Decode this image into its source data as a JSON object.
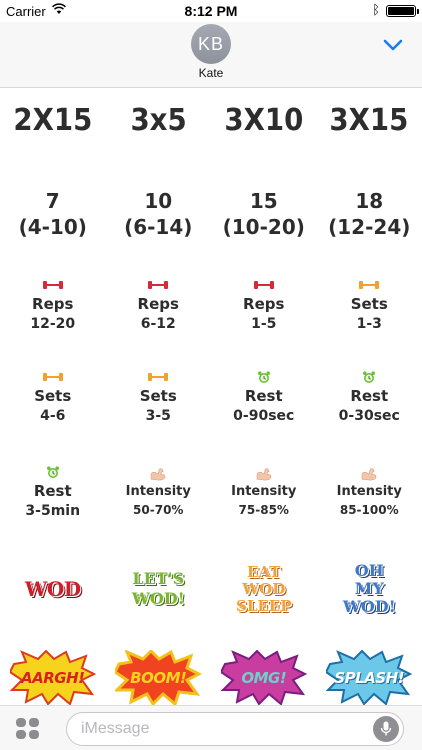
{
  "status": {
    "carrier": "Carrier",
    "time": "8:12 PM",
    "battery_level": 1.0
  },
  "header": {
    "avatar_initials": "KB",
    "contact_name": "Kate"
  },
  "stickers": {
    "schemes": [
      "2X15",
      "3x5",
      "3X10",
      "3X15"
    ],
    "rep_ranges": [
      {
        "value": "7",
        "range": "(4-10)"
      },
      {
        "value": "10",
        "range": "(6-14)"
      },
      {
        "value": "15",
        "range": "(10-20)"
      },
      {
        "value": "18",
        "range": "(12-24)"
      }
    ],
    "row3": [
      {
        "icon": "dumbbell-red-icon",
        "label": "Reps",
        "value": "12-20"
      },
      {
        "icon": "dumbbell-red-icon",
        "label": "Reps",
        "value": "6-12"
      },
      {
        "icon": "dumbbell-red-icon",
        "label": "Reps",
        "value": "1-5"
      },
      {
        "icon": "dumbbell-orange-icon",
        "label": "Sets",
        "value": "1-3"
      }
    ],
    "row4": [
      {
        "icon": "dumbbell-orange-icon",
        "label": "Sets",
        "value": "4-6"
      },
      {
        "icon": "dumbbell-orange-icon",
        "label": "Sets",
        "value": "3-5"
      },
      {
        "icon": "alarm-clock-icon",
        "label": "Rest",
        "value": "0-90sec"
      },
      {
        "icon": "alarm-clock-icon",
        "label": "Rest",
        "value": "0-30sec"
      }
    ],
    "row5": [
      {
        "icon": "alarm-clock-icon",
        "label": "Rest",
        "value": "3-5min"
      },
      {
        "icon": "flexed-biceps-icon",
        "label": "Intensity",
        "value": "50-70%"
      },
      {
        "icon": "flexed-biceps-icon",
        "label": "Intensity",
        "value": "75-85%"
      },
      {
        "icon": "flexed-biceps-icon",
        "label": "Intensity",
        "value": "85-100%"
      }
    ],
    "wordart": {
      "wod": "WOD",
      "lets_wod": [
        "LET'S",
        "WOD!"
      ],
      "eat_wod_sleep": [
        "EAT",
        "WOD",
        "SLEEP"
      ],
      "oh_my_wod": [
        "OH",
        "MY",
        "WOD!"
      ]
    },
    "bursts": [
      {
        "text": "AARGH!",
        "fill": "#f6d31d",
        "stroke": "#e03a1e",
        "text_color": "#d8231c"
      },
      {
        "text": "BOOM!",
        "fill": "#f0431f",
        "stroke": "#f3c21a",
        "text_color": "#ffd21f"
      },
      {
        "text": "OMG!",
        "fill": "#c93ca0",
        "stroke": "#7a1d7e",
        "text_color": "#6fd0c8"
      },
      {
        "text": "SPLASH!",
        "fill": "#6bc8e8",
        "stroke": "#1e6ea8",
        "text_color": "#ffffff"
      }
    ]
  },
  "input": {
    "placeholder": "iMessage"
  },
  "colors": {
    "accent": "#1a7cf3",
    "text": "#2d2d2d",
    "dumbbell_red": "#d62a3a",
    "dumbbell_orange": "#f2a032",
    "clock_green": "#6fc13a",
    "bicep": "#f2c6a8"
  }
}
